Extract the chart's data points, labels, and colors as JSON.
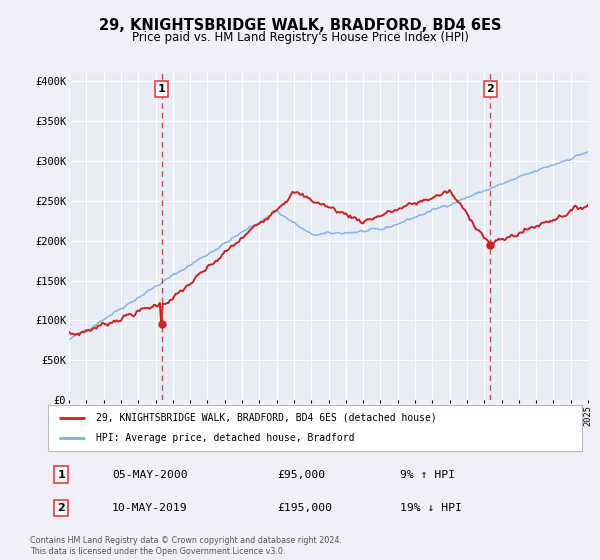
{
  "title": "29, KNIGHTSBRIDGE WALK, BRADFORD, BD4 6ES",
  "subtitle": "Price paid vs. HM Land Registry's House Price Index (HPI)",
  "background_color": "#f0f0f8",
  "plot_bg_color": "#e8ecf4",
  "hpi_color": "#7aaee8",
  "price_color": "#cc2222",
  "marker_color": "#cc2222",
  "vline_color": "#dd4444",
  "sale1_year": 2000.35,
  "sale1_price": 95000,
  "sale2_year": 2019.35,
  "sale2_price": 195000,
  "sale1_date": "05-MAY-2000",
  "sale1_pct": "9% ↑ HPI",
  "sale2_date": "10-MAY-2019",
  "sale2_pct": "19% ↓ HPI",
  "xmin": 1995,
  "xmax": 2025,
  "ymin": 0,
  "ymax": 410000,
  "yticks": [
    0,
    50000,
    100000,
    150000,
    200000,
    250000,
    300000,
    350000,
    400000
  ],
  "ytick_labels": [
    "£0",
    "£50K",
    "£100K",
    "£150K",
    "£200K",
    "£250K",
    "£300K",
    "£350K",
    "£400K"
  ],
  "legend_label_price": "29, KNIGHTSBRIDGE WALK, BRADFORD, BD4 6ES (detached house)",
  "legend_label_hpi": "HPI: Average price, detached house, Bradford",
  "footer_line1": "Contains HM Land Registry data © Crown copyright and database right 2024.",
  "footer_line2": "This data is licensed under the Open Government Licence v3.0."
}
